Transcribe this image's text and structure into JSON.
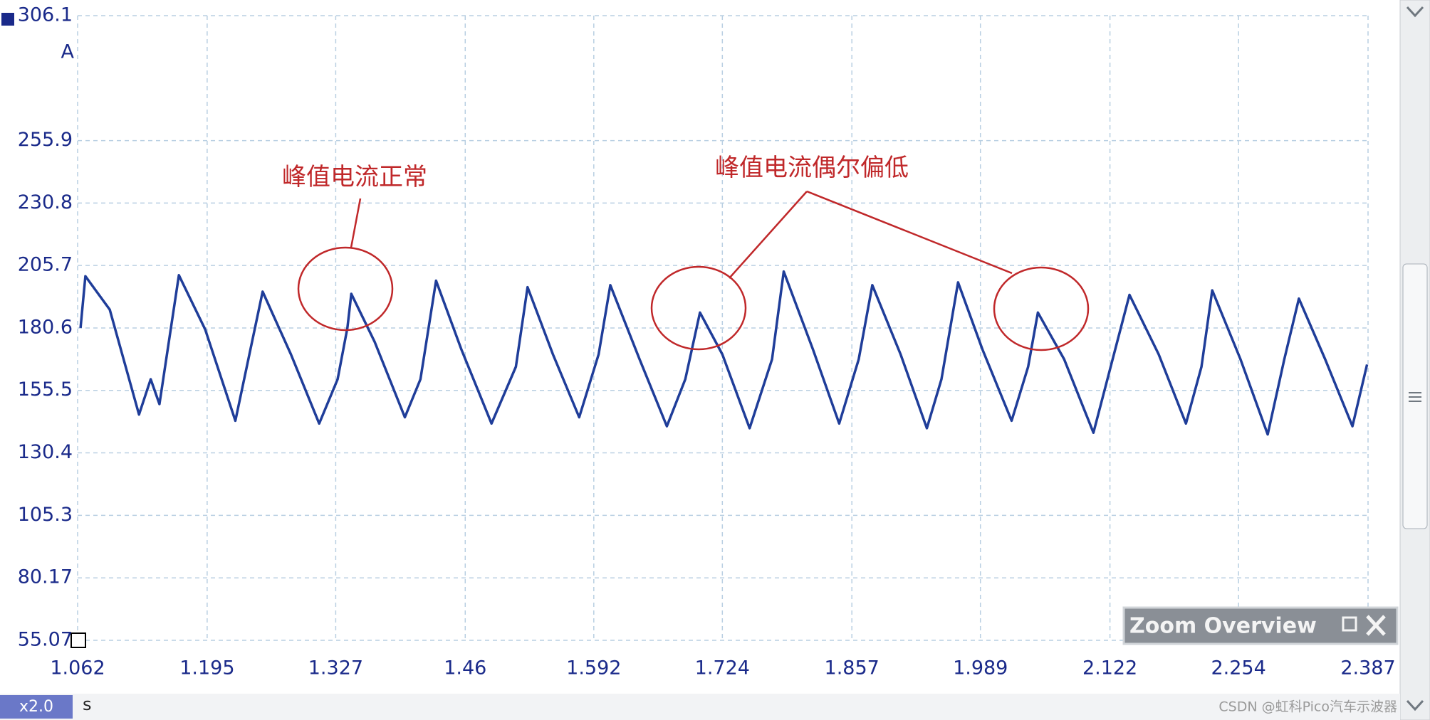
{
  "chart_data": {
    "type": "line",
    "y_unit": "A",
    "x_unit": "s",
    "annotations": [
      "峰值电流正常",
      "峰值电流偶尔偏低"
    ],
    "color": "#1f3d99",
    "xlim": [
      1.062,
      2.387
    ],
    "xticks": [
      1.062,
      1.195,
      1.327,
      1.46,
      1.592,
      1.724,
      1.857,
      1.989,
      2.122,
      2.254,
      2.387
    ],
    "ylim": [
      55.07,
      306.1
    ],
    "yticks": [
      306.1,
      255.9,
      230.8,
      205.7,
      180.6,
      155.5,
      130.4,
      105.3,
      80.17,
      55.07
    ],
    "grid": true,
    "x": [
      1.065,
      1.07,
      1.095,
      1.125,
      1.137,
      1.146,
      1.166,
      1.193,
      1.224,
      1.252,
      1.281,
      1.31,
      1.329,
      1.339,
      1.343,
      1.367,
      1.398,
      1.414,
      1.43,
      1.456,
      1.487,
      1.512,
      1.524,
      1.55,
      1.577,
      1.597,
      1.609,
      1.639,
      1.667,
      1.686,
      1.701,
      1.724,
      1.752,
      1.775,
      1.787,
      1.817,
      1.844,
      1.864,
      1.878,
      1.907,
      1.934,
      1.949,
      1.966,
      1.991,
      2.021,
      2.038,
      2.048,
      2.075,
      2.105,
      2.142,
      2.172,
      2.2,
      2.216,
      2.227,
      2.256,
      2.284,
      2.301,
      2.316,
      2.343,
      2.371,
      2.386
    ],
    "values": [
      180.6,
      201.4,
      188,
      145.8,
      160,
      150,
      201.8,
      180,
      143.3,
      195.2,
      170,
      142.2,
      160,
      180.6,
      194.3,
      175,
      144.7,
      160,
      199.6,
      172,
      142.2,
      165,
      197.0,
      170,
      144.7,
      170,
      197.8,
      168,
      141.1,
      160,
      186.8,
      170,
      140.3,
      168,
      203.3,
      172,
      142.2,
      168,
      197.8,
      170,
      140.3,
      160,
      198.9,
      172,
      143.3,
      165,
      186.8,
      168,
      138.5,
      193.9,
      170,
      142.2,
      165,
      195.7,
      168,
      137.8,
      168,
      192.4,
      168,
      141.1,
      165.9
    ]
  },
  "ui": {
    "zoom_button": "x2.0",
    "panel_title": "Zoom Overview",
    "watermark": "CSDN @虹科Pico汽车示波器"
  }
}
